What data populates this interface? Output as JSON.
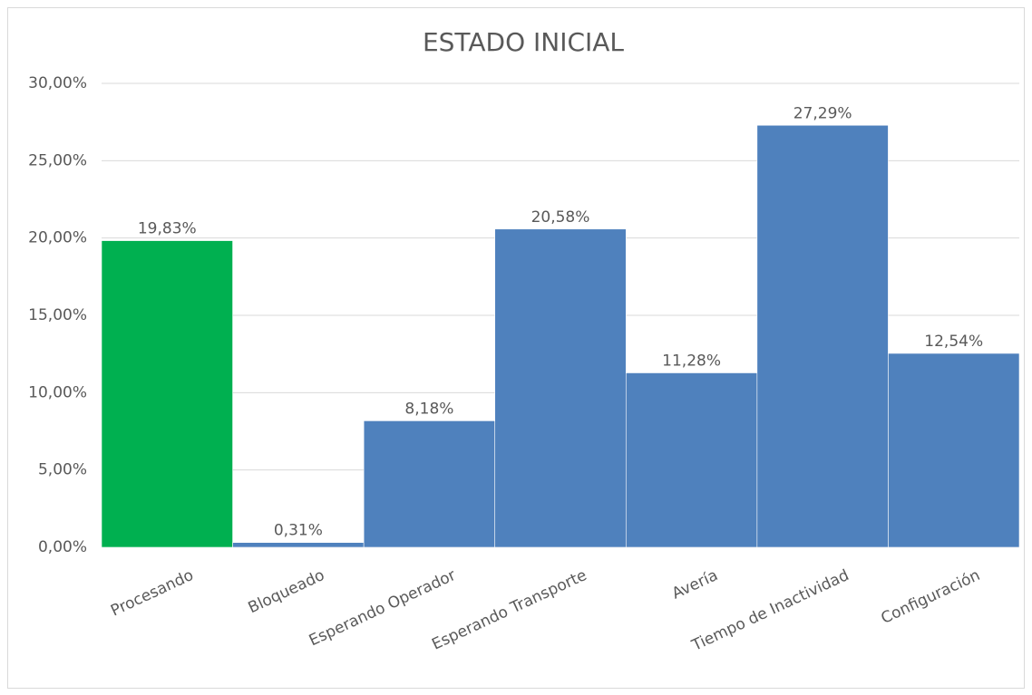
{
  "chart_data": {
    "type": "bar",
    "title": "ESTADO INICIAL",
    "categories": [
      "Procesando",
      "Bloqueado",
      "Esperando Operador",
      "Esperando Transporte",
      "Avería",
      "Tiempo de Inactividad",
      "Configuración"
    ],
    "values": [
      19.83,
      0.31,
      8.18,
      20.58,
      11.28,
      27.29,
      12.54
    ],
    "value_labels": [
      "19,83%",
      "0,31%",
      "8,18%",
      "20,58%",
      "11,28%",
      "27,29%",
      "12,54%"
    ],
    "colors": [
      "#00b050",
      "#4f81bd",
      "#4f81bd",
      "#4f81bd",
      "#4f81bd",
      "#4f81bd",
      "#4f81bd"
    ],
    "ylim": [
      0,
      30
    ],
    "yticks": [
      {
        "value": 0,
        "label": "0,00%"
      },
      {
        "value": 5,
        "label": "5,00%"
      },
      {
        "value": 10,
        "label": "10,00%"
      },
      {
        "value": 15,
        "label": "15,00%"
      },
      {
        "value": 20,
        "label": "20,00%"
      },
      {
        "value": 25,
        "label": "25,00%"
      },
      {
        "value": 30,
        "label": "30,00%"
      }
    ],
    "grid": true
  }
}
